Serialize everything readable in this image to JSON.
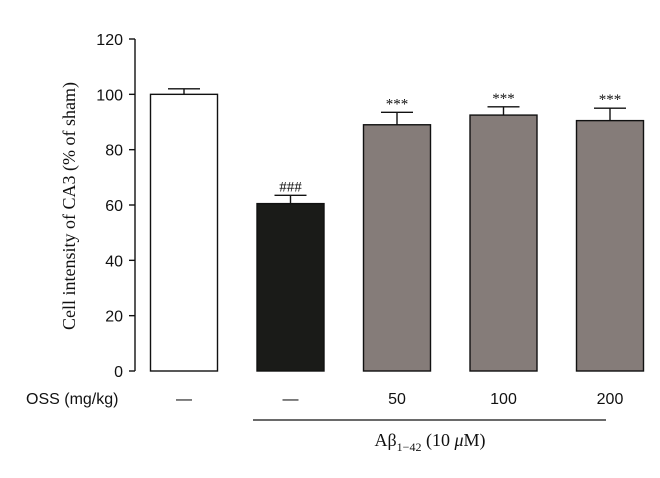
{
  "chart_data": {
    "type": "bar",
    "categories": [
      "—",
      "—",
      "50",
      "100",
      "200"
    ],
    "values": [
      100,
      60.5,
      89,
      92.5,
      90.5
    ],
    "errors": [
      2,
      3,
      4.5,
      3,
      4.5
    ],
    "significance": [
      "",
      "###",
      "***",
      "***",
      "***"
    ],
    "bar_colors": [
      "#ffffff",
      "#1a1b18",
      "#857c79",
      "#857c79",
      "#857c79"
    ],
    "ylabel": "Cell intensity of CA3 (% of sham)",
    "ylim": [
      0,
      120
    ],
    "yticks": [
      "0",
      "20",
      "40",
      "60",
      "80",
      "100",
      "120"
    ],
    "ytick_values": [
      0,
      20,
      40,
      60,
      80,
      100,
      120
    ],
    "row_label": "OSS (mg/kg)",
    "group_label_prefix": "Aβ",
    "group_label_sub": "1−42",
    "group_label_mid": " (10 ",
    "group_label_unit": "μ",
    "group_label_suffix": "M)",
    "grid": false,
    "legend": "none"
  }
}
